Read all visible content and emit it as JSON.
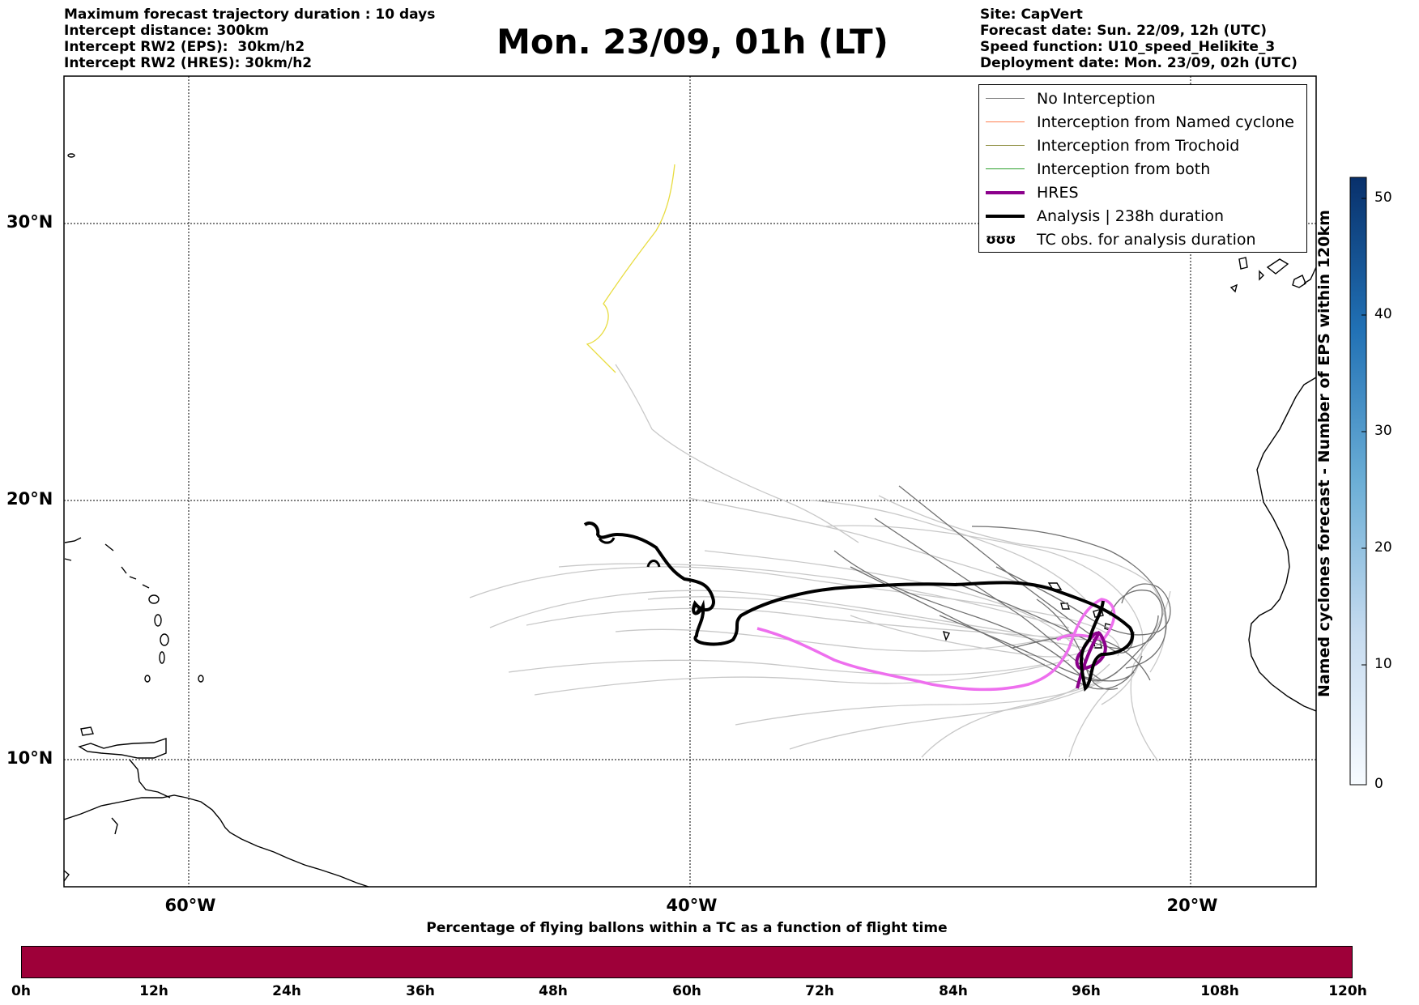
{
  "header": {
    "left_lines": [
      "Maximum forecast trajectory duration : 10 days",
      "Intercept distance: 300km",
      "Intercept RW2 (EPS):  30km/h2",
      "Intercept RW2 (HRES): 30km/h2"
    ],
    "title": "Mon. 23/09, 01h (LT)",
    "right_lines": [
      "Site: CapVert",
      "Forecast date: Sun. 22/09, 12h (UTC)",
      "Speed function: U10_speed_Helikite_3",
      "Deployment date: Mon. 23/09, 02h (UTC)"
    ]
  },
  "map": {
    "lat_labels": [
      "30°N",
      "20°N",
      "10°N"
    ],
    "lon_labels": [
      "60°W",
      "40°W",
      "20°W"
    ]
  },
  "legend": {
    "items": [
      {
        "label": "No Interception",
        "color": "#808080"
      },
      {
        "label": "Interception from Named cyclone",
        "color": "#ff7f50"
      },
      {
        "label": "Interception from Trochoid",
        "color": "#8b8b3a"
      },
      {
        "label": "Interception from both",
        "color": "#2ca02c"
      },
      {
        "label": "HRES",
        "color": "#8b008b"
      },
      {
        "label": "Analysis | 238h duration",
        "color": "#000000"
      },
      {
        "label": "TC obs. for analysis duration",
        "color": "#000000",
        "marks": "ʊʊʊ"
      }
    ]
  },
  "colorbar_vertical": {
    "title": "Named cyclones forecast - Number of EPS within 120km",
    "ticks": [
      "50",
      "40",
      "30",
      "20",
      "10",
      "0"
    ],
    "range": [
      0,
      52
    ],
    "colors": [
      "#08306b",
      "#f7fbff"
    ]
  },
  "colorbar_horizontal": {
    "title": "Percentage of flying ballons within a TC as a function of flight time",
    "ticks": [
      "0h",
      "12h",
      "24h",
      "36h",
      "48h",
      "60h",
      "72h",
      "84h",
      "96h",
      "108h",
      "120h"
    ],
    "color": "#9e0039"
  }
}
